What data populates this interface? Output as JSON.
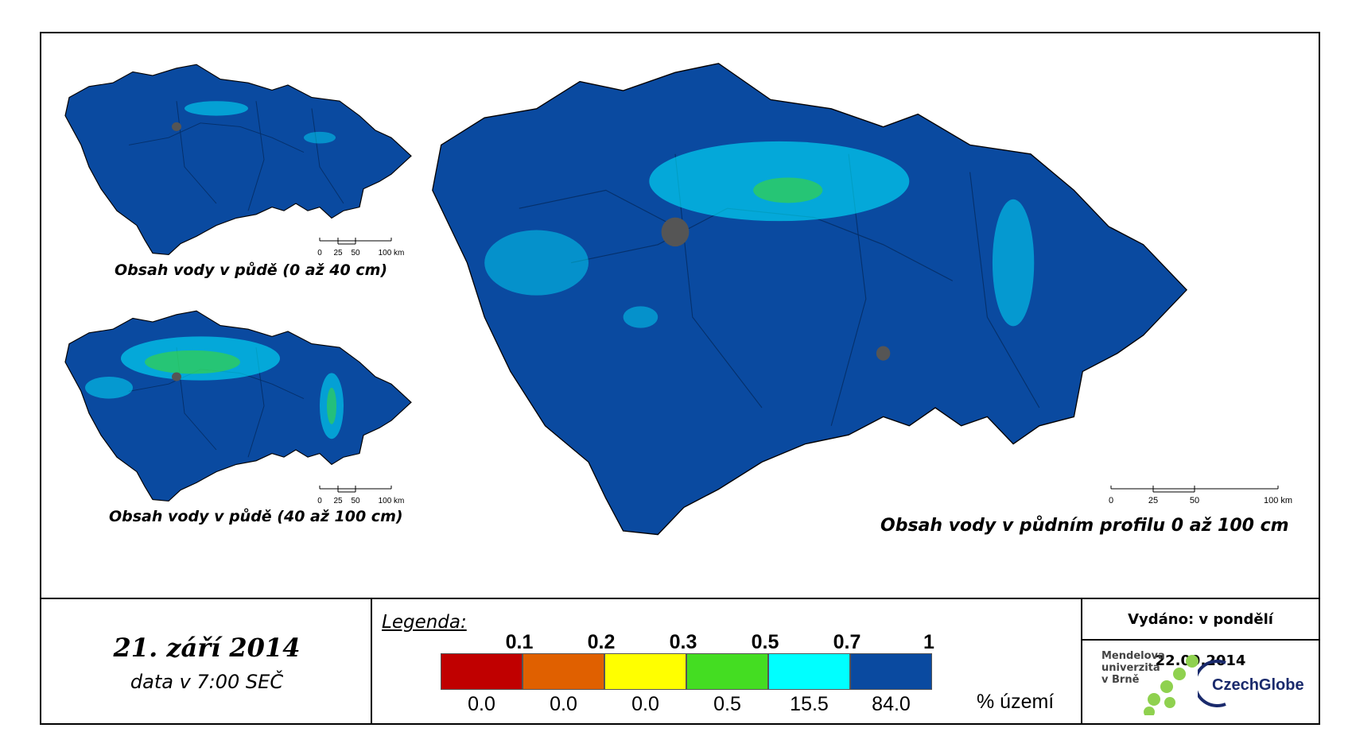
{
  "maps": {
    "small_top_title": "Obsah vody v půdě (0 až 40 cm)",
    "small_bottom_title": "Obsah vody v půdě (40 až 100 cm)",
    "main_title": "Obsah vody v půdním profilu 0 až 100 cm",
    "scale_labels": [
      "0",
      "25",
      "50",
      "100 km"
    ]
  },
  "footer": {
    "date": "21. září 2014",
    "time": "data v 7:00 SEČ",
    "issued": "Vydáno: v pondělí 22.09.2014"
  },
  "legend": {
    "title": "Legenda:",
    "thresholds": [
      "0.1",
      "0.2",
      "0.3",
      "0.5",
      "0.7",
      "1"
    ],
    "classes": [
      {
        "color": "#c00000",
        "percent": "0.0"
      },
      {
        "color": "#e06000",
        "percent": "0.0"
      },
      {
        "color": "#ffff00",
        "percent": "0.0"
      },
      {
        "color": "#44dd22",
        "percent": "0.5"
      },
      {
        "color": "#00ffff",
        "percent": "15.5"
      },
      {
        "color": "#0a4aa0",
        "percent": "84.0"
      }
    ],
    "unit": "% území"
  },
  "logos": {
    "mendel": [
      "Mendelova",
      "univerzita",
      "v Brně"
    ],
    "czechglobe": "CzechGlobe"
  }
}
